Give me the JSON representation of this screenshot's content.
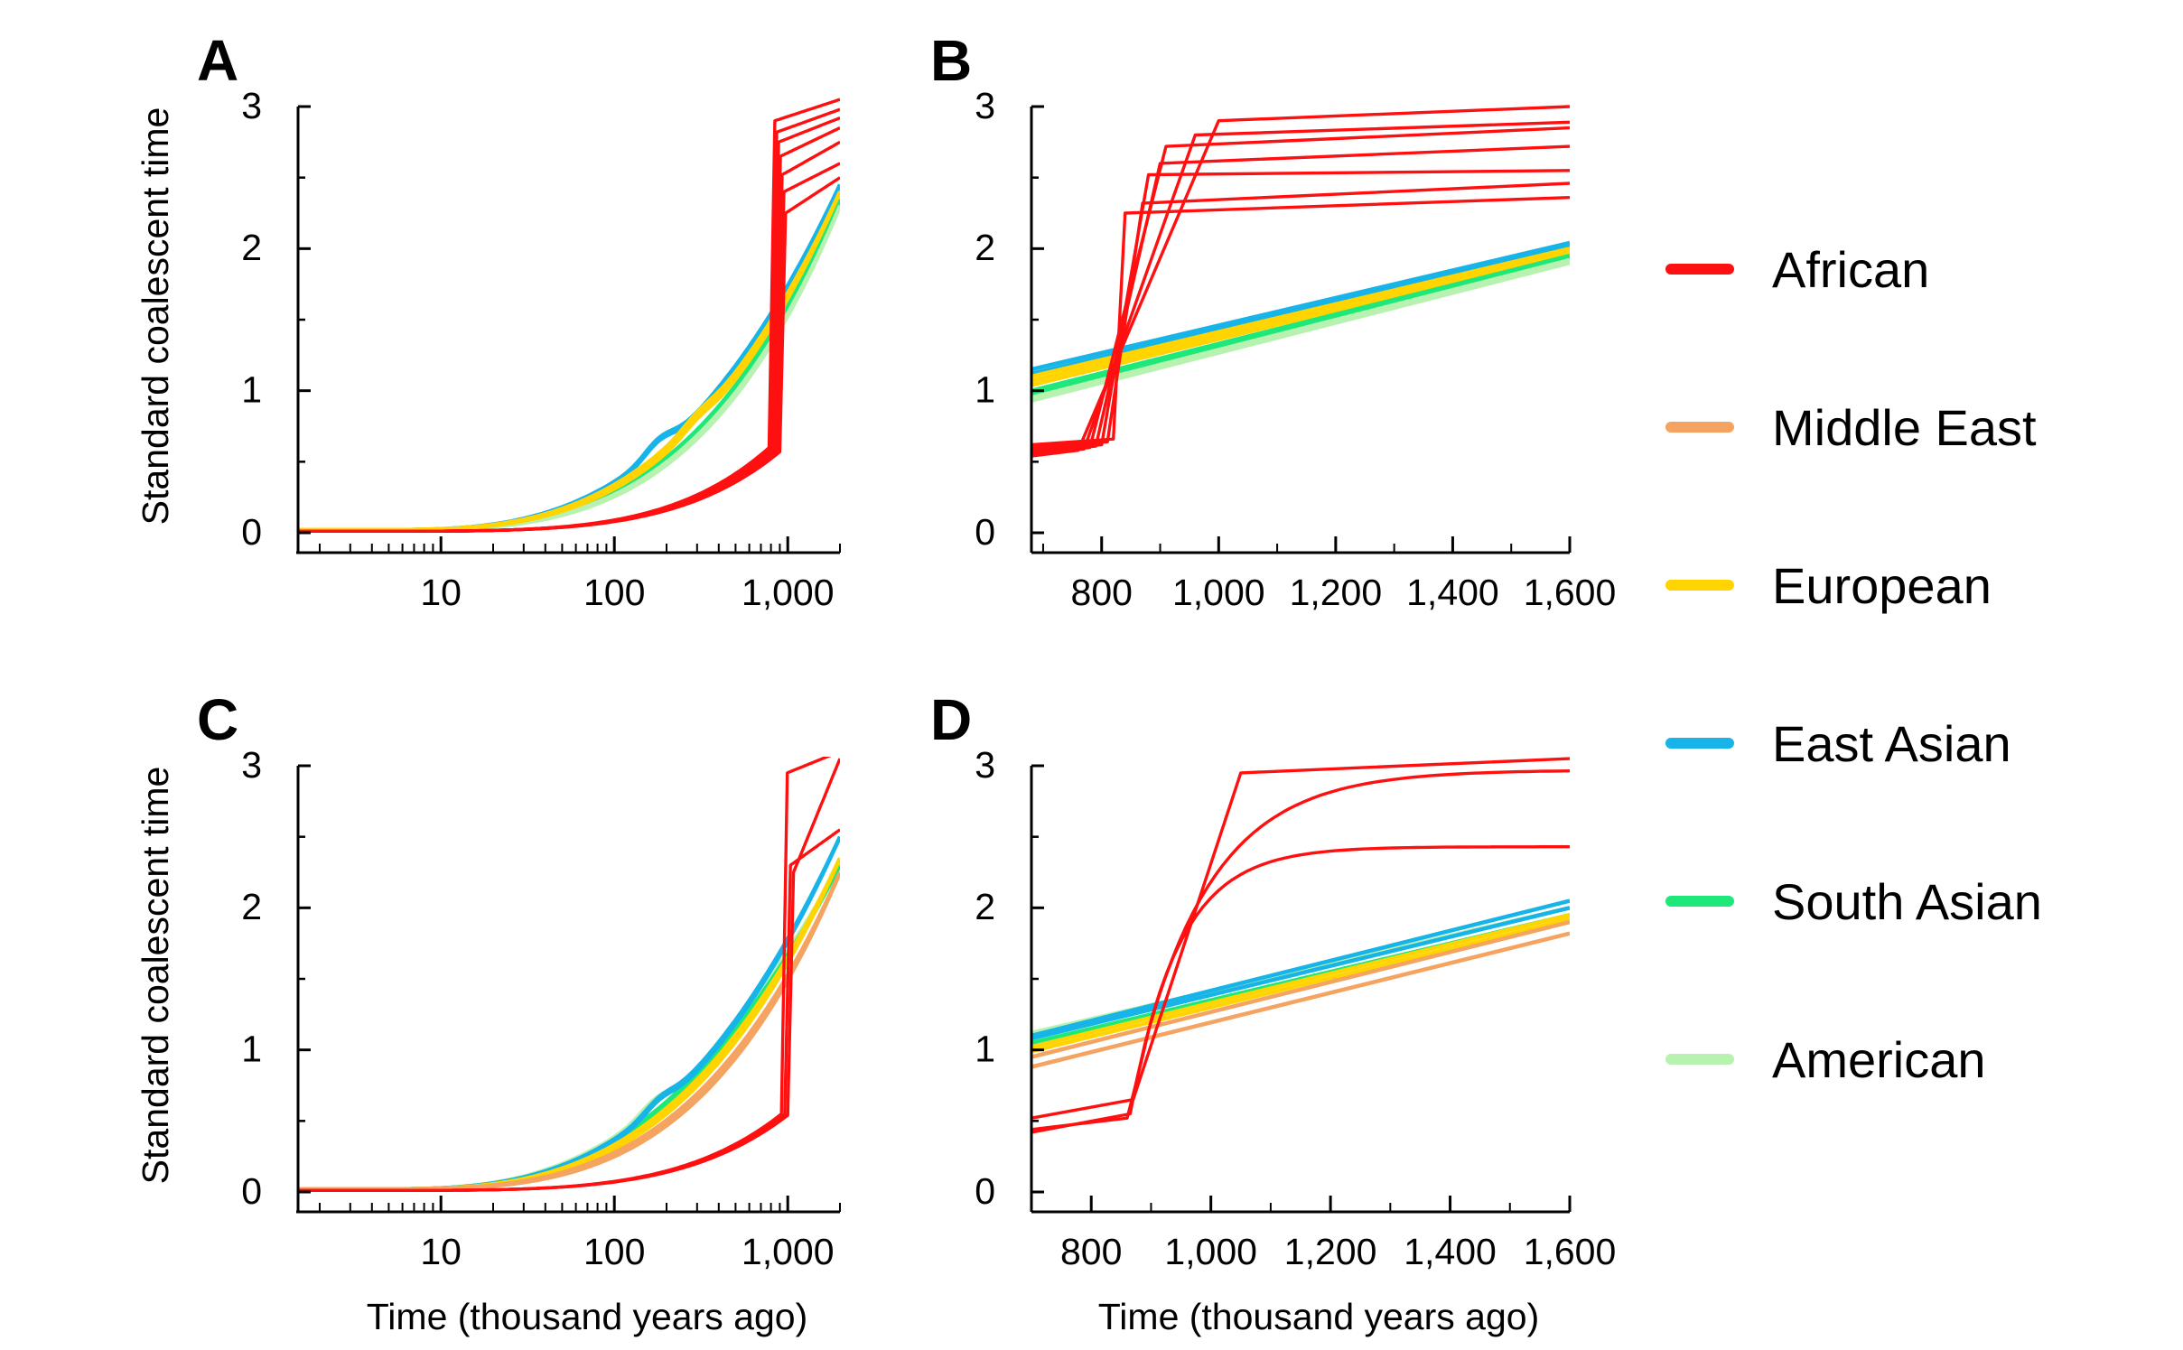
{
  "figure": {
    "legend_title": "",
    "ylabel": "Standard coalescent time",
    "xlabel": "Time (thousand years ago)"
  },
  "legend": [
    {
      "label": "African",
      "color": "#ff1010"
    },
    {
      "label": "Middle East",
      "color": "#f4a361"
    },
    {
      "label": "European",
      "color": "#ffd400"
    },
    {
      "label": "East Asian",
      "color": "#16b4e8"
    },
    {
      "label": "South Asian",
      "color": "#1ee87a"
    },
    {
      "label": "American",
      "color": "#b8f2b0"
    }
  ],
  "chart_data": [
    {
      "panel": "A",
      "type": "line",
      "xscale": "log",
      "xlim": [
        1.5,
        2000
      ],
      "ylim": [
        0,
        3
      ],
      "xticks": [
        10,
        100,
        1000
      ],
      "xticklabels": [
        "10",
        "100",
        "1,000"
      ],
      "yticks": [
        0,
        1,
        2,
        3
      ],
      "yticklabels": [
        "0",
        "1",
        "2",
        "3"
      ],
      "ylabel": "Standard coalescent time",
      "xlabel": "",
      "series": [
        {
          "name": "East Asian",
          "kind": "ooa",
          "count": 2,
          "jitter": 0.05,
          "bump": 0.08,
          "bump_at": 180,
          "end": 2.45
        },
        {
          "name": "South Asian",
          "kind": "ooa",
          "count": 2,
          "jitter": -0.05,
          "bump": 0.0,
          "bump_at": 180,
          "end": 2.35
        },
        {
          "name": "American",
          "kind": "ooa",
          "count": 2,
          "jitter": -0.08,
          "bump": 0.0,
          "bump_at": 180,
          "end": 2.3
        },
        {
          "name": "European",
          "kind": "ooa",
          "count": 3,
          "jitter": 0.0,
          "bump": 0.04,
          "bump_at": 300,
          "end": 2.4
        },
        {
          "name": "African",
          "kind": "african",
          "jump_at": [
            780,
            800,
            820,
            840,
            860,
            880,
            900
          ],
          "pre": 0.6,
          "post": [
            2.9,
            2.82,
            2.75,
            2.65,
            2.52,
            2.4,
            2.25
          ],
          "end": [
            3.05,
            2.98,
            2.92,
            2.85,
            2.75,
            2.6,
            2.5
          ]
        }
      ]
    },
    {
      "panel": "B",
      "type": "line",
      "xscale": "linear",
      "xlim": [
        680,
        1600
      ],
      "ylim": [
        0,
        3
      ],
      "xticks": [
        800,
        1000,
        1200,
        1400,
        1600
      ],
      "xticklabels": [
        "800",
        "1,000",
        "1,200",
        "1,400",
        "1,600"
      ],
      "yticks": [
        0,
        1,
        2,
        3
      ],
      "yticklabels": [
        "0",
        "1",
        "2",
        "3"
      ],
      "ylabel": "",
      "xlabel": "",
      "series": [
        {
          "name": "East Asian",
          "kind": "linear",
          "start": [
            1.15,
            1.12
          ],
          "stop": [
            2.04,
            2.02
          ]
        },
        {
          "name": "European",
          "kind": "linear",
          "start": [
            1.1,
            1.07,
            1.04
          ],
          "stop": [
            2.0,
            1.98,
            1.97
          ]
        },
        {
          "name": "South Asian",
          "kind": "linear",
          "start": [
            1.0,
            0.98
          ],
          "stop": [
            1.95,
            1.94
          ]
        },
        {
          "name": "American",
          "kind": "linear",
          "start": [
            0.95,
            0.93
          ],
          "stop": [
            1.92,
            1.9
          ]
        },
        {
          "name": "African",
          "kind": "african_lin",
          "pre": [
            0.54,
            0.55,
            0.56,
            0.57,
            0.58,
            0.6,
            0.62
          ],
          "jump_from": [
            760,
            770,
            780,
            790,
            800,
            810,
            820
          ],
          "jump_to": [
            1000,
            960,
            910,
            900,
            880,
            870,
            840
          ],
          "post": [
            2.9,
            2.8,
            2.72,
            2.6,
            2.52,
            2.32,
            2.25
          ],
          "end": [
            3.0,
            2.89,
            2.85,
            2.72,
            2.55,
            2.46,
            2.36
          ]
        }
      ]
    },
    {
      "panel": "C",
      "type": "line",
      "xscale": "log",
      "xlim": [
        1.5,
        2000
      ],
      "ylim": [
        0,
        3
      ],
      "xticks": [
        10,
        100,
        1000
      ],
      "xticklabels": [
        "10",
        "100",
        "1,000"
      ],
      "yticks": [
        0,
        1,
        2,
        3
      ],
      "yticklabels": [
        "0",
        "1",
        "2",
        "3"
      ],
      "ylabel": "Standard coalescent time",
      "xlabel": "Time (thousand years ago)",
      "series": [
        {
          "name": "American",
          "kind": "ooa",
          "count": 2,
          "jitter": 0.14,
          "bump": 0.06,
          "bump_at": 170,
          "end": 2.3
        },
        {
          "name": "South Asian",
          "kind": "ooa",
          "count": 2,
          "jitter": 0.1,
          "bump": 0.0,
          "bump_at": 170,
          "end": 2.3
        },
        {
          "name": "East Asian",
          "kind": "ooa",
          "count": 2,
          "jitter": 0.06,
          "bump": 0.06,
          "bump_at": 180,
          "end": 2.5
        },
        {
          "name": "European",
          "kind": "ooa",
          "count": 3,
          "jitter": 0.0,
          "bump": 0.0,
          "bump_at": 180,
          "end": 2.35
        },
        {
          "name": "Middle East",
          "kind": "ooa",
          "count": 3,
          "jitter": -0.08,
          "bump": 0.0,
          "bump_at": 180,
          "end": 2.25
        },
        {
          "name": "African",
          "kind": "african",
          "jump_at": [
            920,
            960,
            1000
          ],
          "pre": 0.55,
          "post": [
            2.95,
            2.3,
            2.25
          ],
          "end": [
            3.1,
            2.55,
            3.05
          ]
        }
      ]
    },
    {
      "panel": "D",
      "type": "line",
      "xscale": "linear",
      "xlim": [
        700,
        1600
      ],
      "ylim": [
        0,
        3
      ],
      "xticks": [
        800,
        1000,
        1200,
        1400,
        1600
      ],
      "xticklabels": [
        "800",
        "1,000",
        "1,200",
        "1,400",
        "1,600"
      ],
      "yticks": [
        0,
        1,
        2,
        3
      ],
      "yticklabels": [
        "0",
        "1",
        "2",
        "3"
      ],
      "ylabel": "",
      "xlabel": "Time (thousand years ago)",
      "series": [
        {
          "name": "American",
          "kind": "linear",
          "start": [
            1.12
          ],
          "stop": [
            2.0
          ]
        },
        {
          "name": "East Asian",
          "kind": "linear",
          "start": [
            1.1,
            1.08
          ],
          "stop": [
            2.05,
            2.0
          ]
        },
        {
          "name": "South Asian",
          "kind": "linear",
          "start": [
            1.05
          ],
          "stop": [
            1.95
          ]
        },
        {
          "name": "European",
          "kind": "linear",
          "start": [
            1.02,
            0.99
          ],
          "stop": [
            1.95,
            1.92
          ]
        },
        {
          "name": "Middle East",
          "kind": "linear",
          "start": [
            0.95,
            0.88
          ],
          "stop": [
            1.9,
            1.82
          ]
        },
        {
          "name": "African",
          "kind": "african_d"
        }
      ]
    }
  ]
}
